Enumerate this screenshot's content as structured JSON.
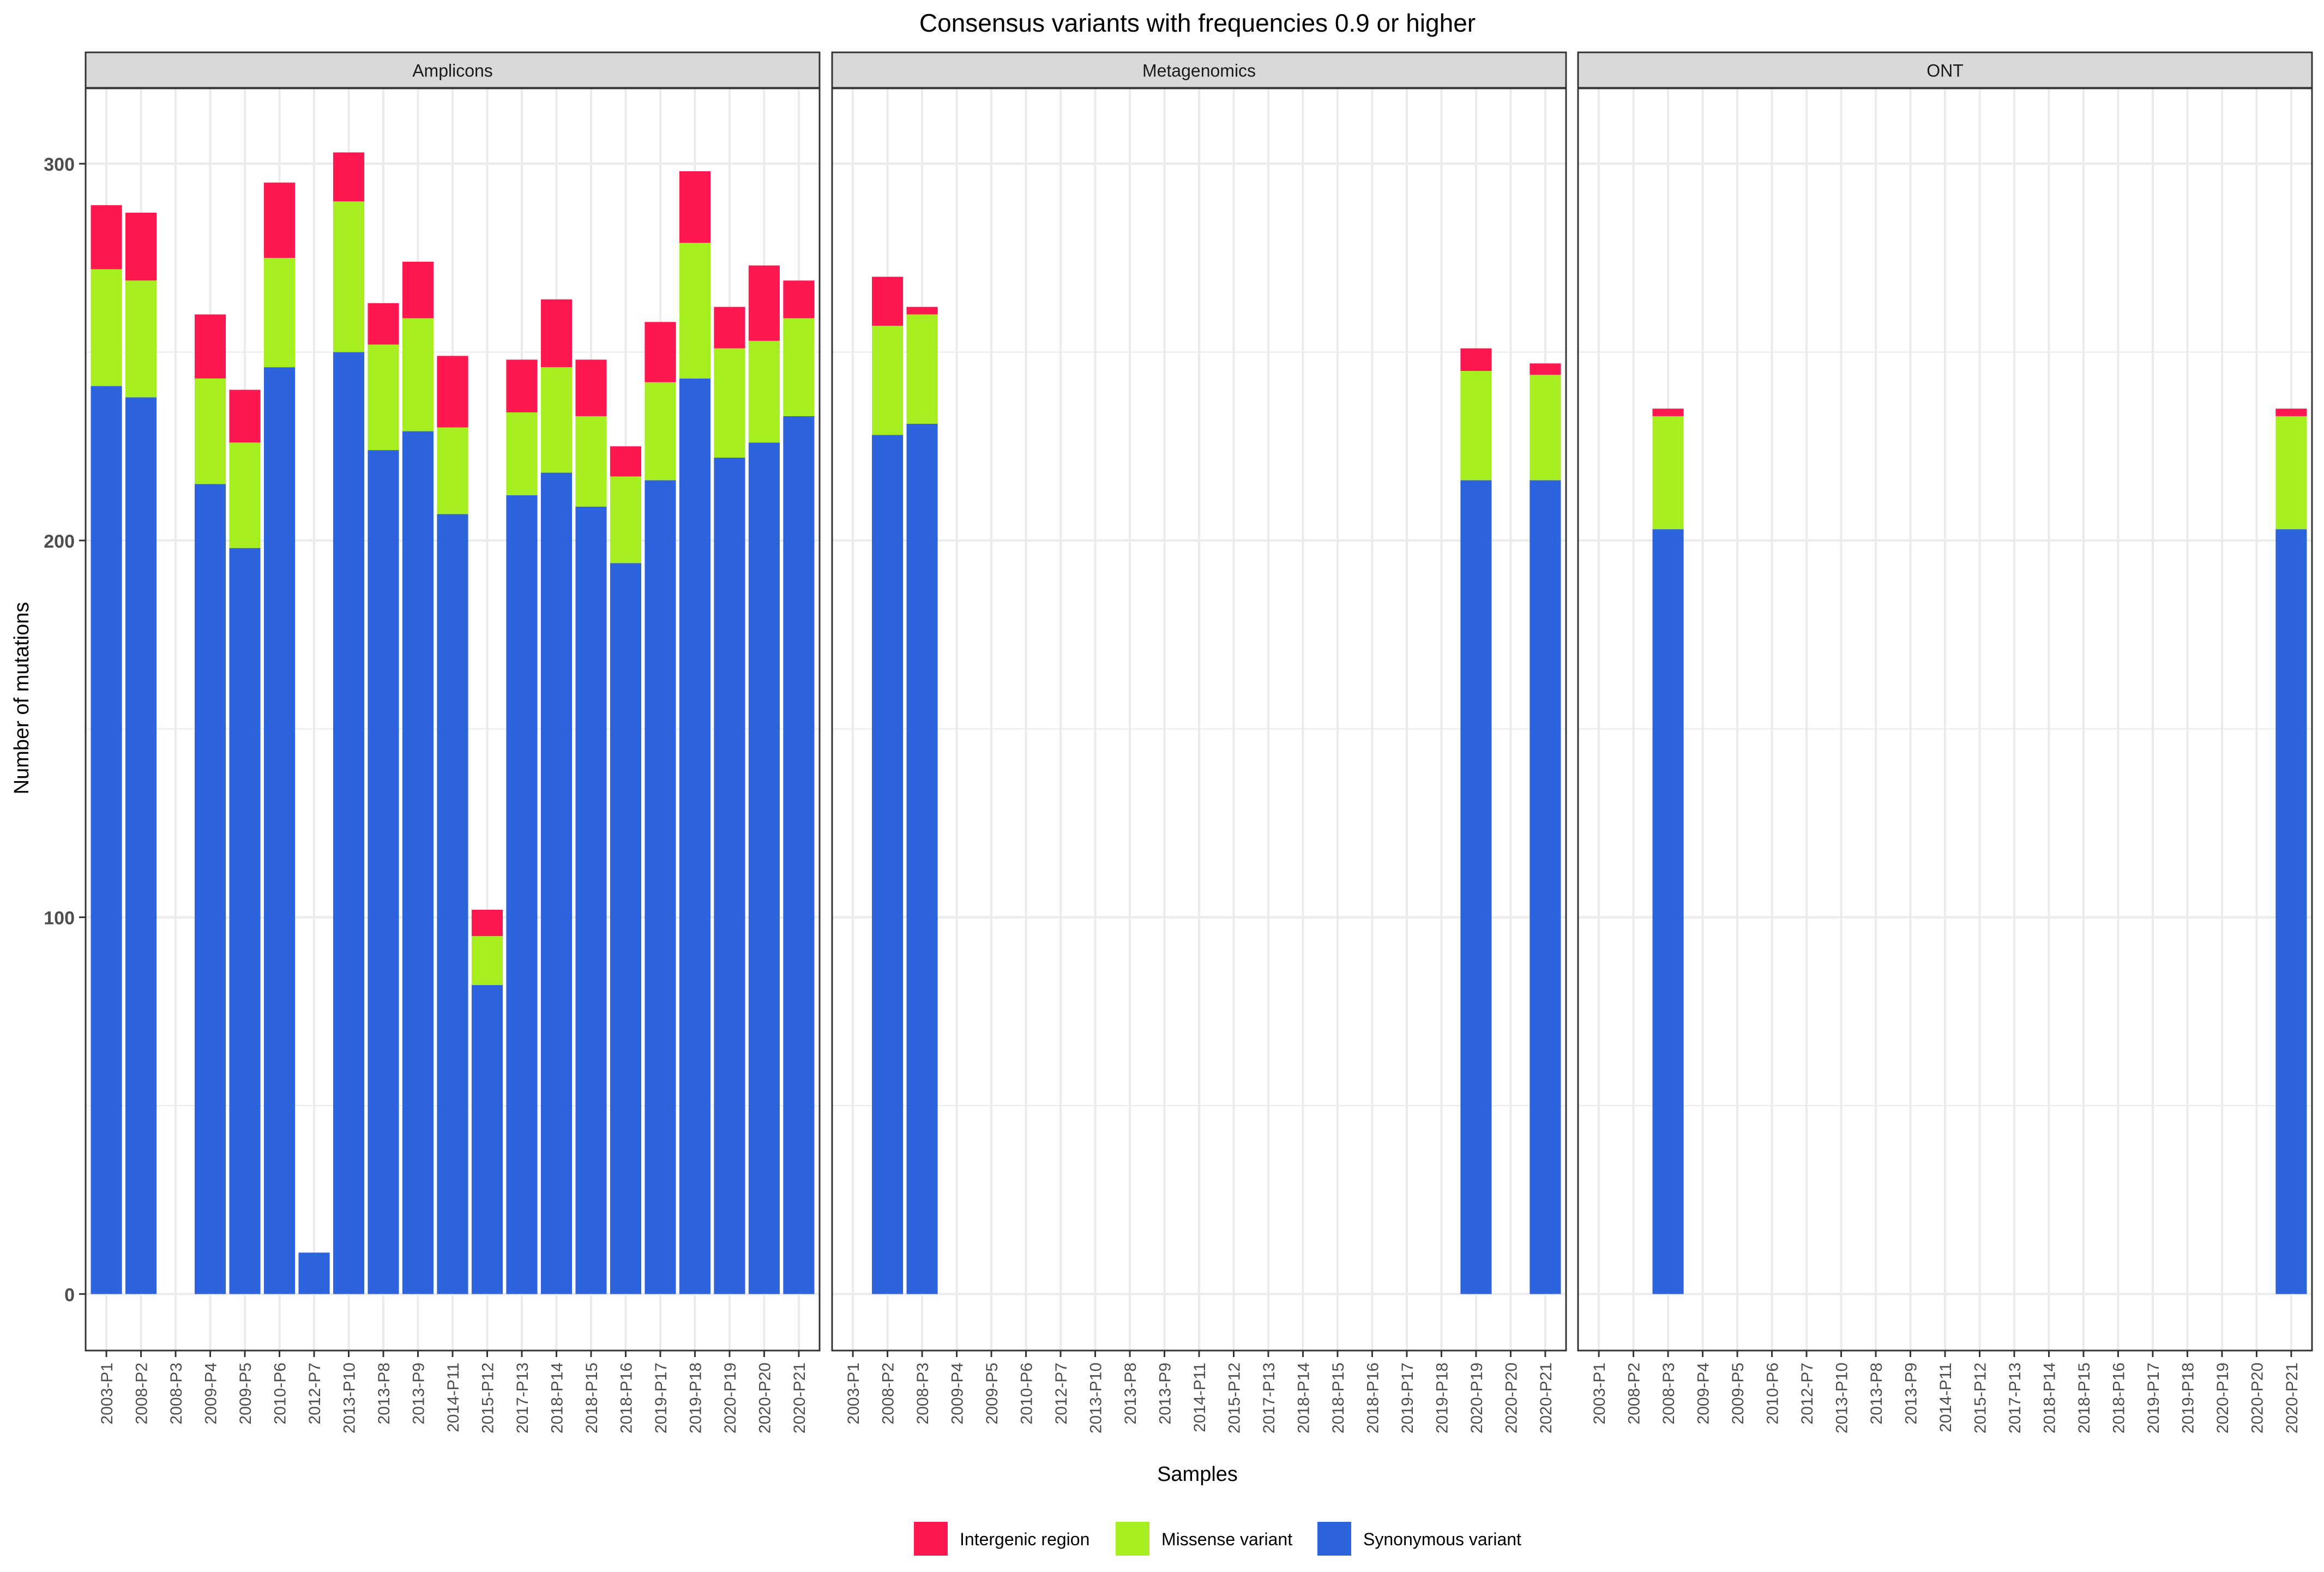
{
  "chart_data": {
    "type": "bar",
    "stacked": true,
    "title": "Consensus variants with frequencies 0.9 or higher",
    "xlabel": "Samples",
    "ylabel": "Number of mutations",
    "ylim": [
      -15,
      320
    ],
    "yticks": [
      0,
      100,
      200,
      300
    ],
    "grid": true,
    "legend_position": "bottom",
    "categories": [
      "2003-P1",
      "2008-P2",
      "2008-P3",
      "2009-P4",
      "2009-P5",
      "2010-P6",
      "2012-P7",
      "2013-P10",
      "2013-P8",
      "2013-P9",
      "2014-P11",
      "2015-P12",
      "2017-P13",
      "2018-P14",
      "2018-P15",
      "2018-P16",
      "2019-P17",
      "2019-P18",
      "2020-P19",
      "2020-P20",
      "2020-P21"
    ],
    "legend": [
      {
        "name": "Intergenic region",
        "color": "#ff1850"
      },
      {
        "name": "Missense variant",
        "color": "#a6ee1f"
      },
      {
        "name": "Synonymous variant",
        "color": "#2d63dd"
      }
    ],
    "panels": [
      {
        "name": "Amplicons",
        "series": [
          {
            "name": "Synonymous variant",
            "values": [
              241,
              238,
              0,
              215,
              198,
              246,
              11,
              250,
              224,
              229,
              207,
              82,
              212,
              218,
              209,
              194,
              216,
              243,
              222,
              226,
              233
            ]
          },
          {
            "name": "Missense variant",
            "values": [
              31,
              31,
              0,
              28,
              28,
              29,
              0,
              40,
              28,
              30,
              23,
              13,
              22,
              28,
              24,
              23,
              26,
              36,
              29,
              27,
              26
            ]
          },
          {
            "name": "Intergenic region",
            "values": [
              17,
              18,
              0,
              17,
              14,
              20,
              0,
              13,
              11,
              15,
              19,
              7,
              14,
              18,
              15,
              8,
              16,
              19,
              11,
              20,
              10
            ]
          }
        ]
      },
      {
        "name": "Metagenomics",
        "series": [
          {
            "name": "Synonymous variant",
            "values": [
              0,
              228,
              231,
              0,
              0,
              0,
              0,
              0,
              0,
              0,
              0,
              0,
              0,
              0,
              0,
              0,
              0,
              0,
              216,
              0,
              216
            ]
          },
          {
            "name": "Missense variant",
            "values": [
              0,
              29,
              29,
              0,
              0,
              0,
              0,
              0,
              0,
              0,
              0,
              0,
              0,
              0,
              0,
              0,
              0,
              0,
              29,
              0,
              28
            ]
          },
          {
            "name": "Intergenic region",
            "values": [
              0,
              13,
              2,
              0,
              0,
              0,
              0,
              0,
              0,
              0,
              0,
              0,
              0,
              0,
              0,
              0,
              0,
              0,
              6,
              0,
              3
            ]
          }
        ]
      },
      {
        "name": "ONT",
        "series": [
          {
            "name": "Synonymous variant",
            "values": [
              0,
              0,
              203,
              0,
              0,
              0,
              0,
              0,
              0,
              0,
              0,
              0,
              0,
              0,
              0,
              0,
              0,
              0,
              0,
              0,
              203
            ]
          },
          {
            "name": "Missense variant",
            "values": [
              0,
              0,
              30,
              0,
              0,
              0,
              0,
              0,
              0,
              0,
              0,
              0,
              0,
              0,
              0,
              0,
              0,
              0,
              0,
              0,
              30
            ]
          },
          {
            "name": "Intergenic region",
            "values": [
              0,
              0,
              2,
              0,
              0,
              0,
              0,
              0,
              0,
              0,
              0,
              0,
              0,
              0,
              0,
              0,
              0,
              0,
              0,
              0,
              2
            ]
          }
        ]
      }
    ]
  },
  "colors": {
    "grid": "#ebebeb",
    "panel_border": "#333333",
    "strip_fill": "#d9d9d9",
    "strip_border": "#333333",
    "text": "#000000",
    "tick_text": "#4d4d4d"
  }
}
